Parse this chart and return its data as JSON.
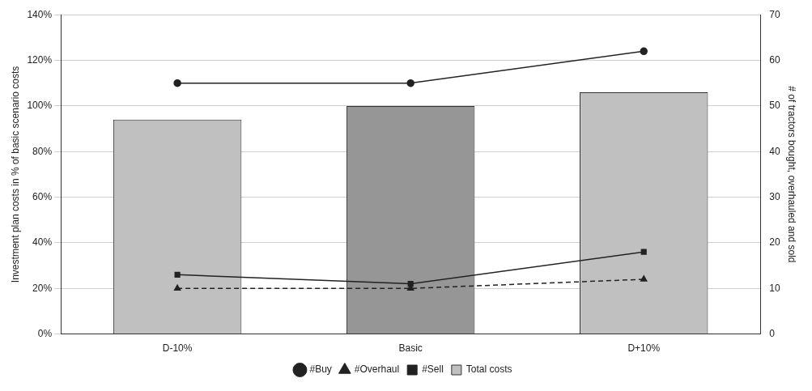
{
  "chart_data": {
    "type": "bar",
    "categories": [
      "D-10%",
      "Basic",
      "D+10%"
    ],
    "ylabel": "Investment plan costs in % of basic scenario costs",
    "y2label": "# of tractors bought, overhauled and sold",
    "ylim": [
      0,
      140
    ],
    "yticks": [
      {
        "value": 0,
        "label": "0%"
      },
      {
        "value": 20,
        "label": "20%"
      },
      {
        "value": 40,
        "label": "40%"
      },
      {
        "value": 60,
        "label": "60%"
      },
      {
        "value": 80,
        "label": "80%"
      },
      {
        "value": 100,
        "label": "100%"
      },
      {
        "value": 120,
        "label": "120%"
      },
      {
        "value": 140,
        "label": "140%"
      }
    ],
    "y2lim": [
      0,
      70
    ],
    "y2ticks": [
      0,
      10,
      20,
      30,
      40,
      50,
      60,
      70
    ],
    "grid": "y",
    "legend": "bottom",
    "series": [
      {
        "name": "#Buy",
        "type": "line",
        "axis": "y2",
        "color": "#222222",
        "marker": "circle",
        "line_style": "solid",
        "values": [
          55,
          55,
          62
        ]
      },
      {
        "name": "#Overhaul",
        "type": "line",
        "axis": "y2",
        "color": "#222222",
        "marker": "triangle",
        "line_style": "dashed",
        "values": [
          10,
          10,
          12
        ]
      },
      {
        "name": "#Sell",
        "type": "line",
        "axis": "y2",
        "color": "#222222",
        "marker": "square",
        "line_style": "solid",
        "values": [
          13,
          11,
          18
        ]
      },
      {
        "name": "Total costs",
        "colors": [
          "#c0c0c0",
          "#969696",
          "#c0c0c0"
        ],
        "values": [
          94,
          100,
          106
        ]
      }
    ]
  }
}
